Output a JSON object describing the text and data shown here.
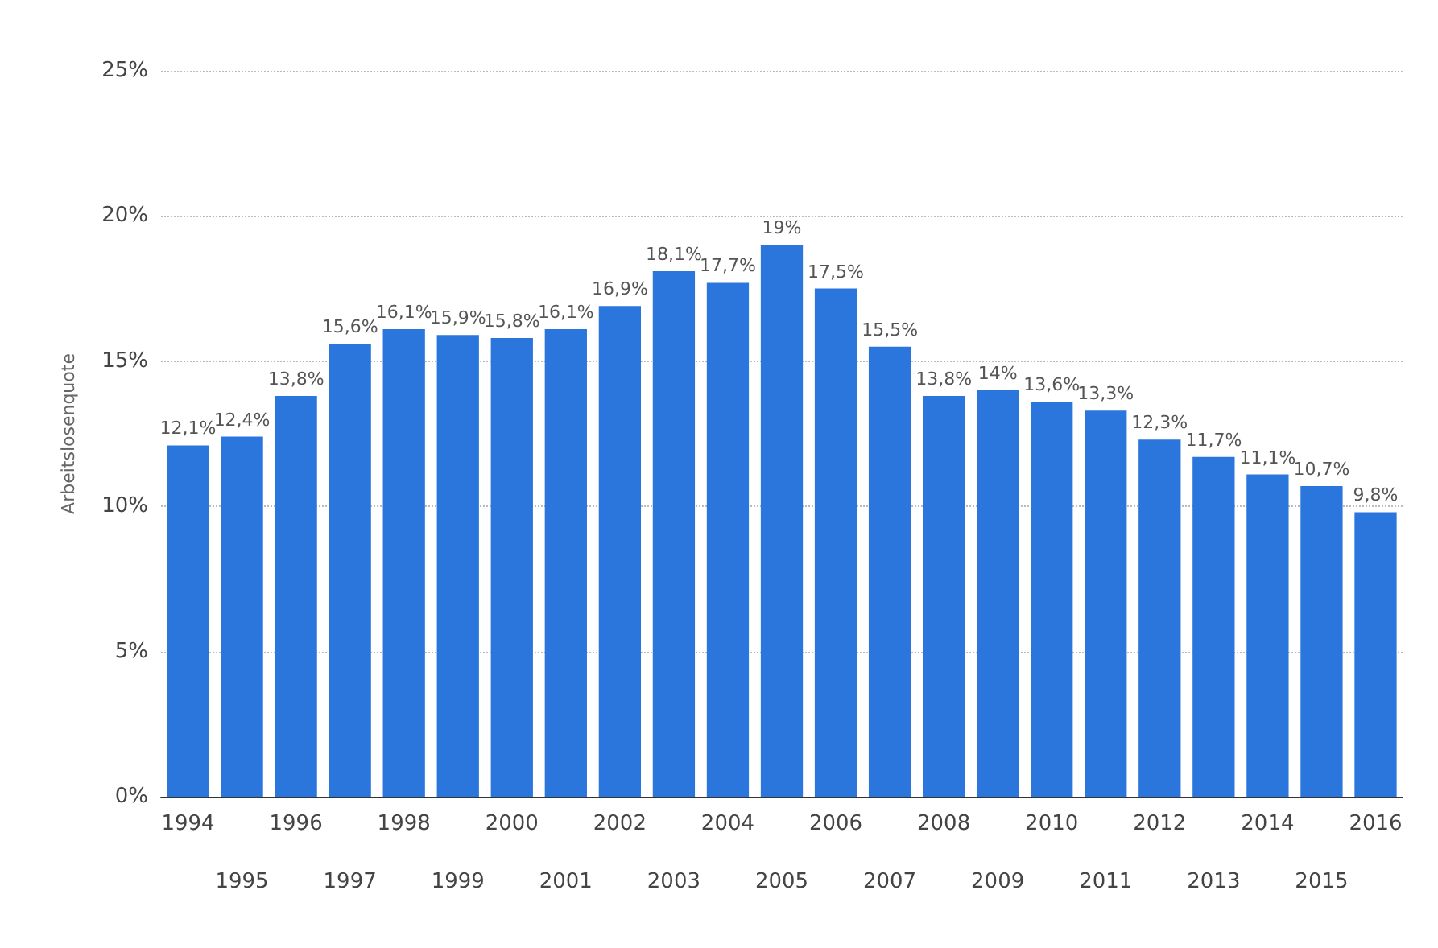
{
  "chart_data": {
    "type": "bar",
    "ylabel": "Arbeitslosenquote",
    "categories": [
      "1994",
      "1995",
      "1996",
      "1997",
      "1998",
      "1999",
      "2000",
      "2001",
      "2002",
      "2003",
      "2004",
      "2005",
      "2006",
      "2007",
      "2008",
      "2009",
      "2010",
      "2011",
      "2012",
      "2013",
      "2014",
      "2015",
      "2016"
    ],
    "values": [
      12.1,
      12.4,
      13.8,
      15.6,
      16.1,
      15.9,
      15.8,
      16.1,
      16.9,
      18.1,
      17.7,
      19,
      17.5,
      15.5,
      13.8,
      14,
      13.6,
      13.3,
      12.3,
      11.7,
      11.1,
      10.7,
      9.8
    ],
    "value_labels": [
      "12,1%",
      "12,4%",
      "13,8%",
      "15,6%",
      "16,1%",
      "15,9%",
      "15,8%",
      "16,1%",
      "16,9%",
      "18,1%",
      "17,7%",
      "19%",
      "17,5%",
      "15,5%",
      "13,8%",
      "14%",
      "13,6%",
      "13,3%",
      "12,3%",
      "11,7%",
      "11,1%",
      "10,7%",
      "9,8%"
    ],
    "color": "#2a76dd",
    "ylim": [
      0,
      25
    ],
    "yticks": [
      {
        "value": 0,
        "label": "0%"
      },
      {
        "value": 5,
        "label": "5%"
      },
      {
        "value": 10,
        "label": "10%"
      },
      {
        "value": 15,
        "label": "15%"
      },
      {
        "value": 20,
        "label": "20%"
      },
      {
        "value": 25,
        "label": "25%"
      }
    ],
    "grid": "y"
  }
}
